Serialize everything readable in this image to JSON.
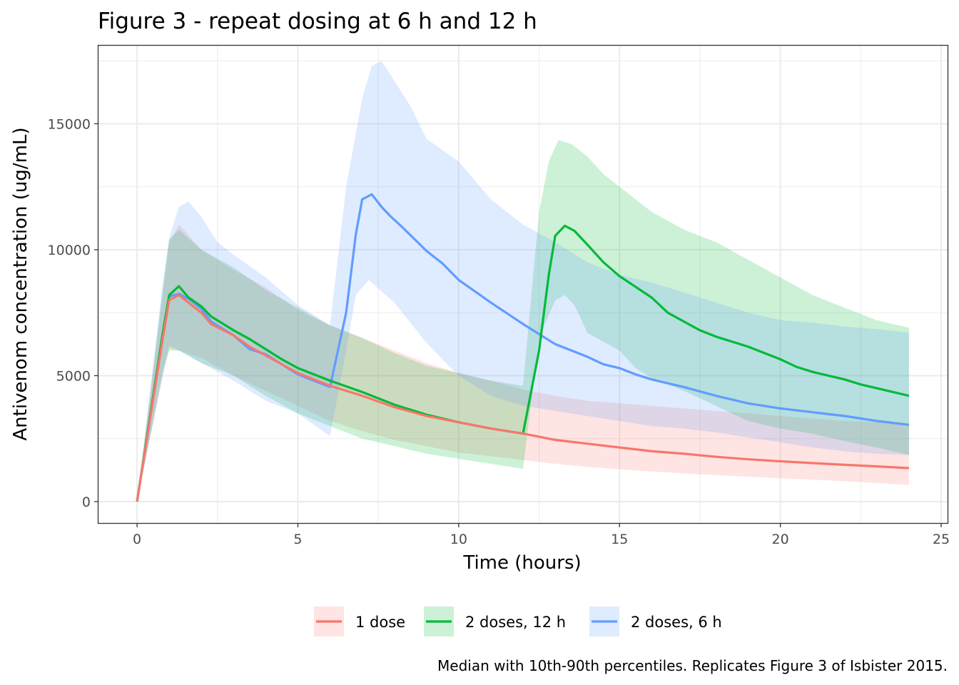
{
  "chart_data": {
    "type": "area",
    "title": "Figure 3 - repeat dosing at 6 h and 12 h",
    "xlabel": "Time (hours)",
    "ylabel": "Antivenom concentration (ug/mL)",
    "caption": "Median with 10th-90th percentiles. Replicates Figure 3 of Isbister 2015.",
    "xlim": [
      -1.2,
      25.2
    ],
    "ylim": [
      -850,
      18100
    ],
    "x_ticks": [
      0,
      5,
      10,
      15,
      20,
      25
    ],
    "x_tick_labels": [
      "0",
      "5",
      "10",
      "15",
      "20",
      "25"
    ],
    "y_ticks": [
      0,
      5000,
      10000,
      15000
    ],
    "y_tick_labels": [
      "0",
      "5000",
      "10000",
      "15000"
    ],
    "grid": true,
    "legend_position": "bottom",
    "series": [
      {
        "name": "1 dose",
        "color": "#F8766D",
        "median": [
          [
            0,
            0
          ],
          [
            0.8,
            6500
          ],
          [
            1,
            8000
          ],
          [
            1.3,
            8200
          ],
          [
            1.6,
            7900
          ],
          [
            2,
            7500
          ],
          [
            2.3,
            7050
          ],
          [
            3,
            6600
          ],
          [
            3.5,
            6150
          ],
          [
            4,
            5800
          ],
          [
            4.5,
            5450
          ],
          [
            5,
            5100
          ],
          [
            6,
            4600
          ],
          [
            7,
            4200
          ],
          [
            8,
            3750
          ],
          [
            9,
            3400
          ],
          [
            10,
            3150
          ],
          [
            11,
            2900
          ],
          [
            12,
            2700
          ],
          [
            13,
            2450
          ],
          [
            14,
            2300
          ],
          [
            15,
            2150
          ],
          [
            16,
            2000
          ],
          [
            17,
            1900
          ],
          [
            18,
            1780
          ],
          [
            19,
            1680
          ],
          [
            20,
            1600
          ],
          [
            21,
            1530
          ],
          [
            22,
            1460
          ],
          [
            23,
            1400
          ],
          [
            24,
            1330
          ]
        ],
        "p10": [
          [
            0,
            0
          ],
          [
            0.8,
            5000
          ],
          [
            1,
            6100
          ],
          [
            1.3,
            6000
          ],
          [
            2,
            5700
          ],
          [
            3,
            5000
          ],
          [
            4,
            4400
          ],
          [
            5,
            3800
          ],
          [
            6,
            3200
          ],
          [
            7,
            2800
          ],
          [
            8,
            2450
          ],
          [
            9,
            2200
          ],
          [
            10,
            1950
          ],
          [
            11,
            1800
          ],
          [
            12,
            1650
          ],
          [
            13,
            1500
          ],
          [
            14,
            1380
          ],
          [
            15,
            1280
          ],
          [
            16,
            1200
          ],
          [
            17,
            1120
          ],
          [
            18,
            1050
          ],
          [
            19,
            990
          ],
          [
            20,
            930
          ],
          [
            21,
            870
          ],
          [
            22,
            810
          ],
          [
            23,
            740
          ],
          [
            24,
            660
          ]
        ],
        "p90": [
          [
            0,
            0
          ],
          [
            0.8,
            8200
          ],
          [
            1,
            10300
          ],
          [
            1.3,
            11000
          ],
          [
            2,
            10000
          ],
          [
            3,
            9200
          ],
          [
            4,
            8500
          ],
          [
            5,
            7600
          ],
          [
            6,
            7000
          ],
          [
            7,
            6500
          ],
          [
            8,
            6000
          ],
          [
            9,
            5500
          ],
          [
            10,
            5100
          ],
          [
            11,
            4800
          ],
          [
            12,
            4450
          ],
          [
            13,
            4200
          ],
          [
            14,
            4000
          ],
          [
            15,
            3900
          ],
          [
            16,
            3800
          ],
          [
            17,
            3700
          ],
          [
            18,
            3600
          ],
          [
            19,
            3500
          ],
          [
            20,
            3400
          ],
          [
            21,
            3300
          ],
          [
            22,
            3200
          ],
          [
            23,
            3150
          ],
          [
            24,
            3100
          ]
        ]
      },
      {
        "name": "2 doses, 12 h",
        "color": "#00BA38",
        "median": [
          [
            0,
            0
          ],
          [
            0.8,
            6700
          ],
          [
            1,
            8200
          ],
          [
            1.3,
            8550
          ],
          [
            1.6,
            8100
          ],
          [
            2,
            7750
          ],
          [
            2.3,
            7350
          ],
          [
            3,
            6800
          ],
          [
            3.5,
            6450
          ],
          [
            4,
            6050
          ],
          [
            4.5,
            5650
          ],
          [
            5,
            5300
          ],
          [
            6,
            4800
          ],
          [
            7,
            4350
          ],
          [
            8,
            3850
          ],
          [
            9,
            3450
          ],
          [
            10,
            3150
          ],
          [
            11,
            2900
          ],
          [
            12,
            2700
          ],
          [
            12.5,
            6000
          ],
          [
            12.8,
            9000
          ],
          [
            13,
            10550
          ],
          [
            13.3,
            10950
          ],
          [
            13.6,
            10750
          ],
          [
            14,
            10200
          ],
          [
            14.5,
            9500
          ],
          [
            15,
            8950
          ],
          [
            16,
            8100
          ],
          [
            16.5,
            7500
          ],
          [
            17,
            7150
          ],
          [
            17.5,
            6800
          ],
          [
            18,
            6550
          ],
          [
            19,
            6150
          ],
          [
            20,
            5650
          ],
          [
            20.5,
            5350
          ],
          [
            21,
            5150
          ],
          [
            22,
            4850
          ],
          [
            22.5,
            4650
          ],
          [
            23,
            4500
          ],
          [
            24,
            4200
          ]
        ],
        "p10": [
          [
            0,
            0
          ],
          [
            0.8,
            5200
          ],
          [
            1,
            6000
          ],
          [
            1.3,
            6000
          ],
          [
            2,
            5500
          ],
          [
            3,
            5000
          ],
          [
            4,
            4200
          ],
          [
            5,
            3500
          ],
          [
            6,
            3000
          ],
          [
            7,
            2500
          ],
          [
            8,
            2200
          ],
          [
            9,
            1900
          ],
          [
            10,
            1700
          ],
          [
            11,
            1500
          ],
          [
            12,
            1300
          ],
          [
            12.5,
            6500
          ],
          [
            13,
            8000
          ],
          [
            13.3,
            8200
          ],
          [
            13.6,
            7800
          ],
          [
            14,
            6700
          ],
          [
            15,
            6000
          ],
          [
            15.5,
            5300
          ],
          [
            16,
            4900
          ],
          [
            17,
            4400
          ],
          [
            18,
            3800
          ],
          [
            19,
            3200
          ],
          [
            20,
            2900
          ],
          [
            21,
            2700
          ],
          [
            22,
            2400
          ],
          [
            23,
            2150
          ],
          [
            24,
            1850
          ]
        ],
        "p90": [
          [
            0,
            0
          ],
          [
            0.8,
            8500
          ],
          [
            1,
            10400
          ],
          [
            1.3,
            10800
          ],
          [
            2,
            10000
          ],
          [
            3,
            9300
          ],
          [
            4,
            8400
          ],
          [
            5,
            7700
          ],
          [
            6,
            7000
          ],
          [
            7,
            6500
          ],
          [
            8,
            5900
          ],
          [
            9,
            5400
          ],
          [
            10,
            5100
          ],
          [
            11,
            4800
          ],
          [
            12,
            4600
          ],
          [
            12.5,
            11500
          ],
          [
            12.8,
            13500
          ],
          [
            13.1,
            14350
          ],
          [
            13.5,
            14200
          ],
          [
            14,
            13700
          ],
          [
            14.5,
            13000
          ],
          [
            15,
            12500
          ],
          [
            16,
            11500
          ],
          [
            17,
            10800
          ],
          [
            18,
            10300
          ],
          [
            19,
            9600
          ],
          [
            20,
            8900
          ],
          [
            21,
            8200
          ],
          [
            22,
            7700
          ],
          [
            23,
            7200
          ],
          [
            24,
            6900
          ]
        ]
      },
      {
        "name": "2 doses, 6 h",
        "color": "#619CFF",
        "median": [
          [
            0,
            0
          ],
          [
            0.8,
            6700
          ],
          [
            1,
            8150
          ],
          [
            1.3,
            8250
          ],
          [
            1.6,
            8050
          ],
          [
            2,
            7650
          ],
          [
            2.3,
            7150
          ],
          [
            3,
            6600
          ],
          [
            3.5,
            6050
          ],
          [
            4,
            5850
          ],
          [
            4.5,
            5450
          ],
          [
            5,
            5050
          ],
          [
            6,
            4550
          ],
          [
            6.5,
            7500
          ],
          [
            6.8,
            10600
          ],
          [
            7,
            12000
          ],
          [
            7.3,
            12200
          ],
          [
            7.6,
            11700
          ],
          [
            7.9,
            11300
          ],
          [
            8.2,
            10950
          ],
          [
            9,
            9950
          ],
          [
            9.5,
            9450
          ],
          [
            10,
            8800
          ],
          [
            11,
            7900
          ],
          [
            12,
            7050
          ],
          [
            13,
            6250
          ],
          [
            14,
            5750
          ],
          [
            14.5,
            5450
          ],
          [
            15,
            5300
          ],
          [
            15.5,
            5050
          ],
          [
            16,
            4850
          ],
          [
            17,
            4550
          ],
          [
            18,
            4200
          ],
          [
            19,
            3900
          ],
          [
            20,
            3700
          ],
          [
            21,
            3550
          ],
          [
            22,
            3400
          ],
          [
            23,
            3200
          ],
          [
            24,
            3050
          ]
        ],
        "p10": [
          [
            0,
            0
          ],
          [
            0.8,
            5000
          ],
          [
            1,
            6200
          ],
          [
            1.3,
            6000
          ],
          [
            2,
            5500
          ],
          [
            3,
            4800
          ],
          [
            4,
            4000
          ],
          [
            5,
            3500
          ],
          [
            6,
            2600
          ],
          [
            6.5,
            6000
          ],
          [
            6.8,
            8200
          ],
          [
            7.2,
            8800
          ],
          [
            8,
            7900
          ],
          [
            9,
            6300
          ],
          [
            10,
            5000
          ],
          [
            11,
            4200
          ],
          [
            12,
            3800
          ],
          [
            13,
            3600
          ],
          [
            14,
            3400
          ],
          [
            15,
            3200
          ],
          [
            16,
            3000
          ],
          [
            17,
            2900
          ],
          [
            18,
            2750
          ],
          [
            19,
            2550
          ],
          [
            20,
            2350
          ],
          [
            21,
            2150
          ],
          [
            22,
            2000
          ],
          [
            23,
            1900
          ],
          [
            24,
            1850
          ]
        ],
        "p90": [
          [
            0,
            0
          ],
          [
            0.8,
            8700
          ],
          [
            1,
            10500
          ],
          [
            1.3,
            11700
          ],
          [
            1.6,
            11900
          ],
          [
            2,
            11300
          ],
          [
            2.5,
            10300
          ],
          [
            3,
            9800
          ],
          [
            4,
            8900
          ],
          [
            5,
            7800
          ],
          [
            6,
            7000
          ],
          [
            6.5,
            12500
          ],
          [
            7,
            16000
          ],
          [
            7.3,
            17300
          ],
          [
            7.6,
            17500
          ],
          [
            8,
            16700
          ],
          [
            8.5,
            15700
          ],
          [
            9,
            14400
          ],
          [
            10,
            13500
          ],
          [
            11,
            12000
          ],
          [
            12,
            11000
          ],
          [
            13,
            10300
          ],
          [
            14,
            9500
          ],
          [
            15,
            9000
          ],
          [
            16,
            8700
          ],
          [
            17,
            8300
          ],
          [
            18,
            7900
          ],
          [
            19,
            7500
          ],
          [
            20,
            7200
          ],
          [
            21,
            7100
          ],
          [
            22,
            6950
          ],
          [
            23,
            6850
          ],
          [
            24,
            6700
          ]
        ]
      }
    ]
  }
}
